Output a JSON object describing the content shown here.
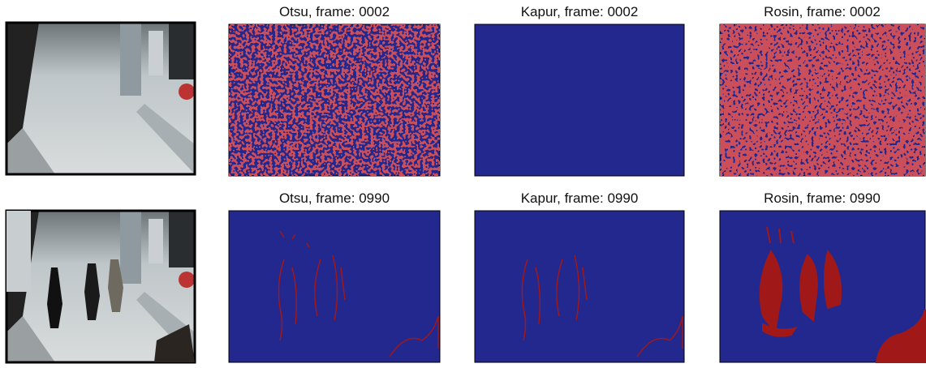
{
  "panels": [
    {
      "title": "Otsu, frame: 0002"
    },
    {
      "title": "Kapur, frame: 0002"
    },
    {
      "title": "Rosin, frame: 0002"
    },
    {
      "title": "Otsu, frame: 0990"
    },
    {
      "title": "Kapur, frame: 0990"
    },
    {
      "title": "Rosin, frame: 0990"
    }
  ]
}
